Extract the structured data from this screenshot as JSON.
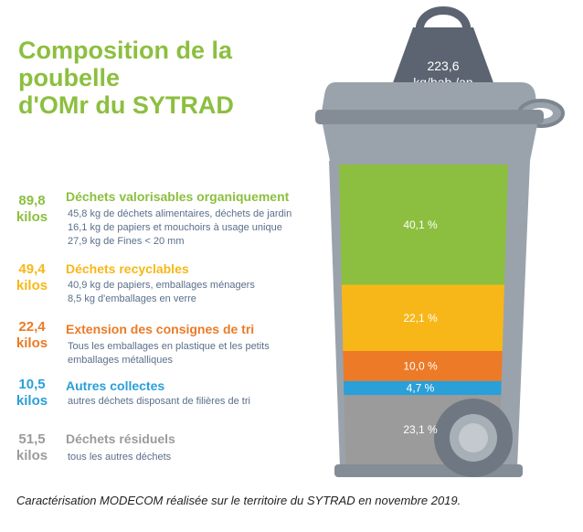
{
  "title": {
    "line1": "Composition de la poubelle",
    "line2": "d'OMr du SYTRAD"
  },
  "weight": {
    "line1": "223,6",
    "line2": "kg/hab./an"
  },
  "categories": [
    {
      "kilos_value": "89,8",
      "kilos_unit": "kilos",
      "title": "Déchets valorisables organiquement",
      "details": [
        "45,8 kg de déchets alimentaires, déchets de jardin",
        "16,1 kg de papiers et mouchoirs à usage unique",
        "27,9 kg de Fines < 20 mm"
      ],
      "color": "#8cbf3f",
      "percent": "40,1 %"
    },
    {
      "kilos_value": "49,4",
      "kilos_unit": "kilos",
      "title": "Déchets recyclables",
      "details": [
        "40,9 kg de papiers, emballages ménagers",
        "8,5 kg d'emballages en verre"
      ],
      "color": "#f7b718",
      "percent": "22,1 %"
    },
    {
      "kilos_value": "22,4",
      "kilos_unit": "kilos",
      "title": "Extension des consignes de tri",
      "details": [
        "Tous les emballages en plastique et les petits",
        "emballages métalliques"
      ],
      "color": "#ec7a26",
      "percent": "10,0 %"
    },
    {
      "kilos_value": "10,5",
      "kilos_unit": "kilos",
      "title": "Autres collectes",
      "details": [
        "autres déchets disposant de filières de tri"
      ],
      "color": "#2a9fd8",
      "percent": "4,7 %"
    },
    {
      "kilos_value": "51,5",
      "kilos_unit": "kilos",
      "title": "Déchets résiduels",
      "details": [
        "tous les autres déchets"
      ],
      "color": "#9b9b9b",
      "percent": "23,1 %"
    }
  ],
  "caption": "Caractérisation MODECOM réalisée sur le territoire du SYTRAD en novembre 2019.",
  "colors": {
    "title": "#8cbf3f",
    "bin_body": "#9aa3ac",
    "bin_dark": "#6f7882",
    "weight": "#5b6470"
  },
  "chart_data": {
    "type": "bar",
    "stacked": true,
    "total": 223.6,
    "total_unit": "kg/hab./an",
    "categories": [
      "Déchets valorisables organiquement",
      "Déchets recyclables",
      "Extension des consignes de tri",
      "Autres collectes",
      "Déchets résiduels"
    ],
    "values_kg": [
      89.8,
      49.4,
      22.4,
      10.5,
      51.5
    ],
    "values_percent": [
      40.1,
      22.1,
      10.0,
      4.7,
      23.1
    ]
  }
}
